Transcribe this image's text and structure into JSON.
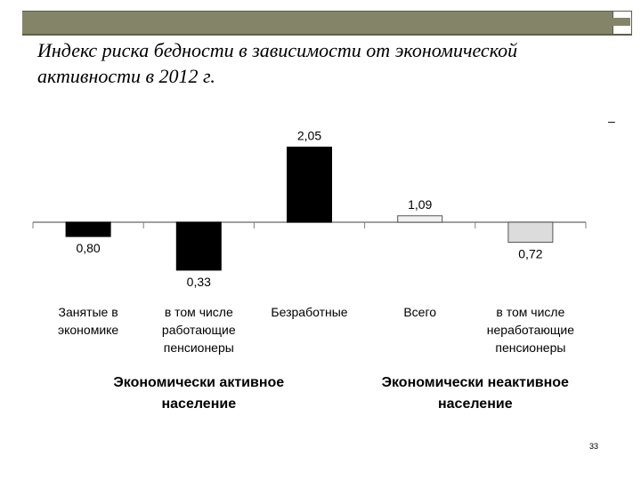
{
  "title": "Индекс риска бедности в зависимости от экономической активности в 2012 г.",
  "dash": "–",
  "page_number": "33",
  "colors": {
    "black_bar": "#000000",
    "light_bar": "#f2f2f2",
    "gray_bar": "#dcdcdc",
    "header": "#848469"
  },
  "chart_data": {
    "type": "bar",
    "baseline": 1,
    "ylim": [
      0.1,
      2.4
    ],
    "categories": [
      [
        "Занятые в",
        "экономике"
      ],
      [
        "в том числе",
        "работающие",
        "пенсионеры"
      ],
      [
        "Безработные"
      ],
      [
        "Всего"
      ],
      [
        "в том числе",
        "неработающие",
        "пенсионеры"
      ]
    ],
    "values": [
      0.8,
      0.33,
      2.05,
      1.09,
      0.72
    ],
    "value_labels": [
      "0,80",
      "0,33",
      "2,05",
      "1,09",
      "0,72"
    ],
    "bar_fills": [
      "#000000",
      "#000000",
      "#000000",
      "#f2f2f2",
      "#dcdcdc"
    ],
    "groups": [
      {
        "label": [
          "Экономически активное",
          "население"
        ],
        "span": [
          0,
          2
        ]
      },
      {
        "label": [
          "Экономически неактивное",
          "население"
        ],
        "span": [
          3,
          4
        ]
      }
    ]
  }
}
